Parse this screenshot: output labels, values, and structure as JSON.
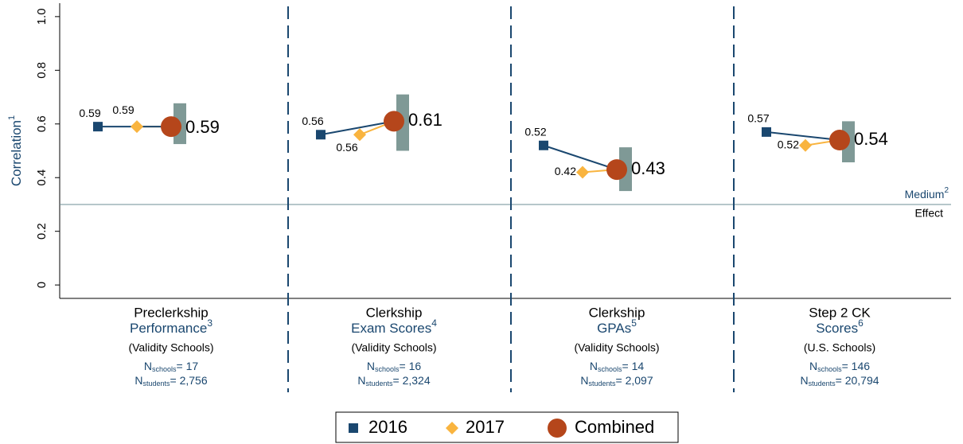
{
  "chart_data": {
    "type": "dot",
    "y_label": "Correlation",
    "y_label_note": "1",
    "ylim": [
      -0.05,
      1.05
    ],
    "yticks": [
      0,
      0.2,
      0.4,
      0.6,
      0.8,
      {
        "value": 1,
        "label": "1.0"
      }
    ],
    "n_label": "N",
    "schools_sub": "schools",
    "students_sub": "students",
    "categories": [
      {
        "lines": [
          "Preclerkship",
          "Performance"
        ],
        "note": "3",
        "group": "(Validity Schools)",
        "n_schools": "= 17",
        "n_students": "= 2,756"
      },
      {
        "lines": [
          "Clerkship",
          "Exam Scores"
        ],
        "note": "4",
        "group": "(Validity Schools)",
        "n_schools": "= 16",
        "n_students": "= 2,324"
      },
      {
        "lines": [
          "Clerkship",
          "GPAs"
        ],
        "note": "5",
        "group": "(Validity Schools)",
        "n_schools": "= 14",
        "n_students": "= 2,097"
      },
      {
        "lines": [
          "Step 2 CK",
          "Scores"
        ],
        "note": "6",
        "group": "(U.S. Schools)",
        "n_schools": "= 146",
        "n_students": "= 20,794"
      }
    ],
    "series": [
      {
        "name": "2016",
        "color": "#1a476f",
        "marker": "square",
        "values": [
          0.59,
          0.56,
          0.52,
          0.57
        ]
      },
      {
        "name": "2017",
        "color": "#f9b43f",
        "marker": "diamond",
        "values": [
          0.59,
          0.56,
          0.42,
          0.52
        ]
      },
      {
        "name": "Combined",
        "color": "#b5461b",
        "marker": "circle",
        "values": [
          0.59,
          0.61,
          0.43,
          0.54
        ],
        "ci": [
          [
            0.525,
            0.677
          ],
          [
            0.5,
            0.71
          ],
          [
            0.35,
            0.513
          ],
          [
            0.457,
            0.61
          ]
        ],
        "ci_color": "#7f9996"
      }
    ],
    "reference": {
      "value": 0.3,
      "label": [
        "Medium",
        "Effect"
      ],
      "note": "2",
      "color": "#6e8f95"
    }
  }
}
